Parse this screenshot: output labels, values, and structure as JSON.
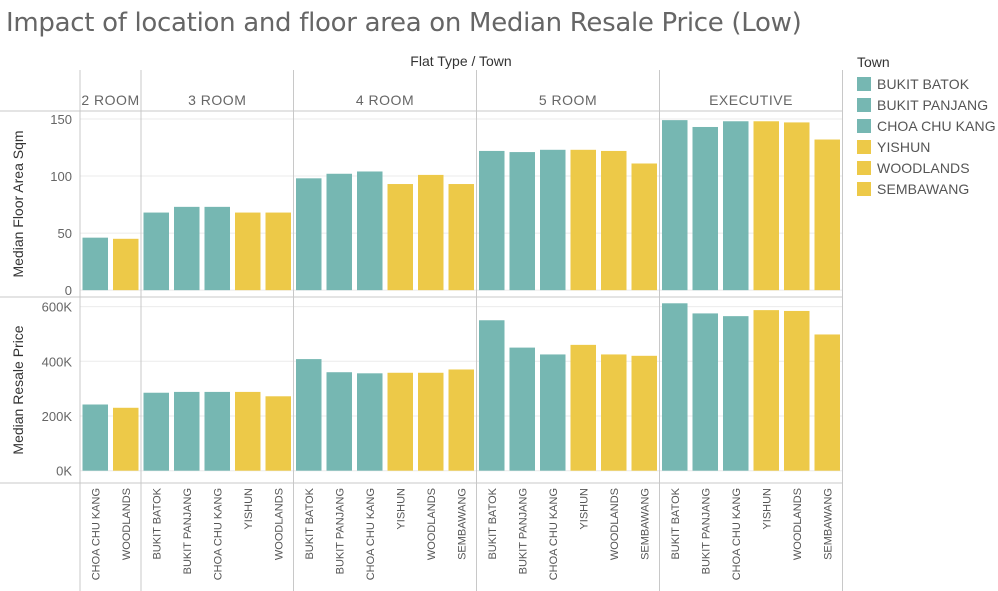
{
  "title": "Impact of location and floor area on Median Resale Price (Low)",
  "colors": {
    "teal": "#76b7b2",
    "yellow": "#edc948",
    "grid": "#ebebeb",
    "divider": "#c8c8c8",
    "text": "#555555"
  },
  "legend": {
    "title": "Town",
    "items": [
      {
        "label": "BUKIT BATOK",
        "color": "#76b7b2"
      },
      {
        "label": "BUKIT PANJANG",
        "color": "#76b7b2"
      },
      {
        "label": "CHOA CHU KANG",
        "color": "#76b7b2"
      },
      {
        "label": "YISHUN",
        "color": "#edc948"
      },
      {
        "label": "WOODLANDS",
        "color": "#edc948"
      },
      {
        "label": "SEMBAWANG",
        "color": "#edc948"
      }
    ]
  },
  "chart_data": {
    "type": "bar",
    "column_header": "Flat Type  /  Town",
    "groups": [
      {
        "name": "2 ROOM",
        "towns": [
          {
            "town": "CHOA CHU KANG",
            "color": "teal",
            "floor_area": 46,
            "price": 242000
          },
          {
            "town": "WOODLANDS",
            "color": "yellow",
            "floor_area": 45,
            "price": 230000
          }
        ]
      },
      {
        "name": "3 ROOM",
        "towns": [
          {
            "town": "BUKIT BATOK",
            "color": "teal",
            "floor_area": 68,
            "price": 285000
          },
          {
            "town": "BUKIT PANJANG",
            "color": "teal",
            "floor_area": 73,
            "price": 288000
          },
          {
            "town": "CHOA CHU KANG",
            "color": "teal",
            "floor_area": 73,
            "price": 288000
          },
          {
            "town": "YISHUN",
            "color": "yellow",
            "floor_area": 68,
            "price": 288000
          },
          {
            "town": "WOODLANDS",
            "color": "yellow",
            "floor_area": 68,
            "price": 272000
          }
        ]
      },
      {
        "name": "4 ROOM",
        "towns": [
          {
            "town": "BUKIT BATOK",
            "color": "teal",
            "floor_area": 98,
            "price": 408000
          },
          {
            "town": "BUKIT PANJANG",
            "color": "teal",
            "floor_area": 102,
            "price": 360000
          },
          {
            "town": "CHOA CHU KANG",
            "color": "teal",
            "floor_area": 104,
            "price": 356000
          },
          {
            "town": "YISHUN",
            "color": "yellow",
            "floor_area": 93,
            "price": 358000
          },
          {
            "town": "WOODLANDS",
            "color": "yellow",
            "floor_area": 101,
            "price": 358000
          },
          {
            "town": "SEMBAWANG",
            "color": "yellow",
            "floor_area": 93,
            "price": 370000
          }
        ]
      },
      {
        "name": "5 ROOM",
        "towns": [
          {
            "town": "BUKIT BATOK",
            "color": "teal",
            "floor_area": 122,
            "price": 550000
          },
          {
            "town": "BUKIT PANJANG",
            "color": "teal",
            "floor_area": 121,
            "price": 450000
          },
          {
            "town": "CHOA CHU KANG",
            "color": "teal",
            "floor_area": 123,
            "price": 425000
          },
          {
            "town": "YISHUN",
            "color": "yellow",
            "floor_area": 123,
            "price": 460000
          },
          {
            "town": "WOODLANDS",
            "color": "yellow",
            "floor_area": 122,
            "price": 425000
          },
          {
            "town": "SEMBAWANG",
            "color": "yellow",
            "floor_area": 111,
            "price": 420000
          }
        ]
      },
      {
        "name": "EXECUTIVE",
        "towns": [
          {
            "town": "BUKIT BATOK",
            "color": "teal",
            "floor_area": 149,
            "price": 612000
          },
          {
            "town": "BUKIT PANJANG",
            "color": "teal",
            "floor_area": 143,
            "price": 575000
          },
          {
            "town": "CHOA CHU KANG",
            "color": "teal",
            "floor_area": 148,
            "price": 565000
          },
          {
            "town": "YISHUN",
            "color": "yellow",
            "floor_area": 148,
            "price": 587000
          },
          {
            "town": "WOODLANDS",
            "color": "yellow",
            "floor_area": 147,
            "price": 584000
          },
          {
            "town": "SEMBAWANG",
            "color": "yellow",
            "floor_area": 132,
            "price": 498000
          }
        ]
      }
    ],
    "panels": [
      {
        "measure": "floor_area",
        "ylabel": "Median Floor Area Sqm",
        "ylim": [
          -6,
          157
        ],
        "ticks": [
          0,
          50,
          100,
          150
        ],
        "tick_labels": [
          "0",
          "50",
          "100",
          "150"
        ]
      },
      {
        "measure": "price",
        "ylabel": "Median Resale Price",
        "ylim": [
          -45000,
          635000
        ],
        "ticks": [
          0,
          200000,
          400000,
          600000
        ],
        "tick_labels": [
          "0K",
          "200K",
          "400K",
          "600K"
        ]
      }
    ]
  }
}
